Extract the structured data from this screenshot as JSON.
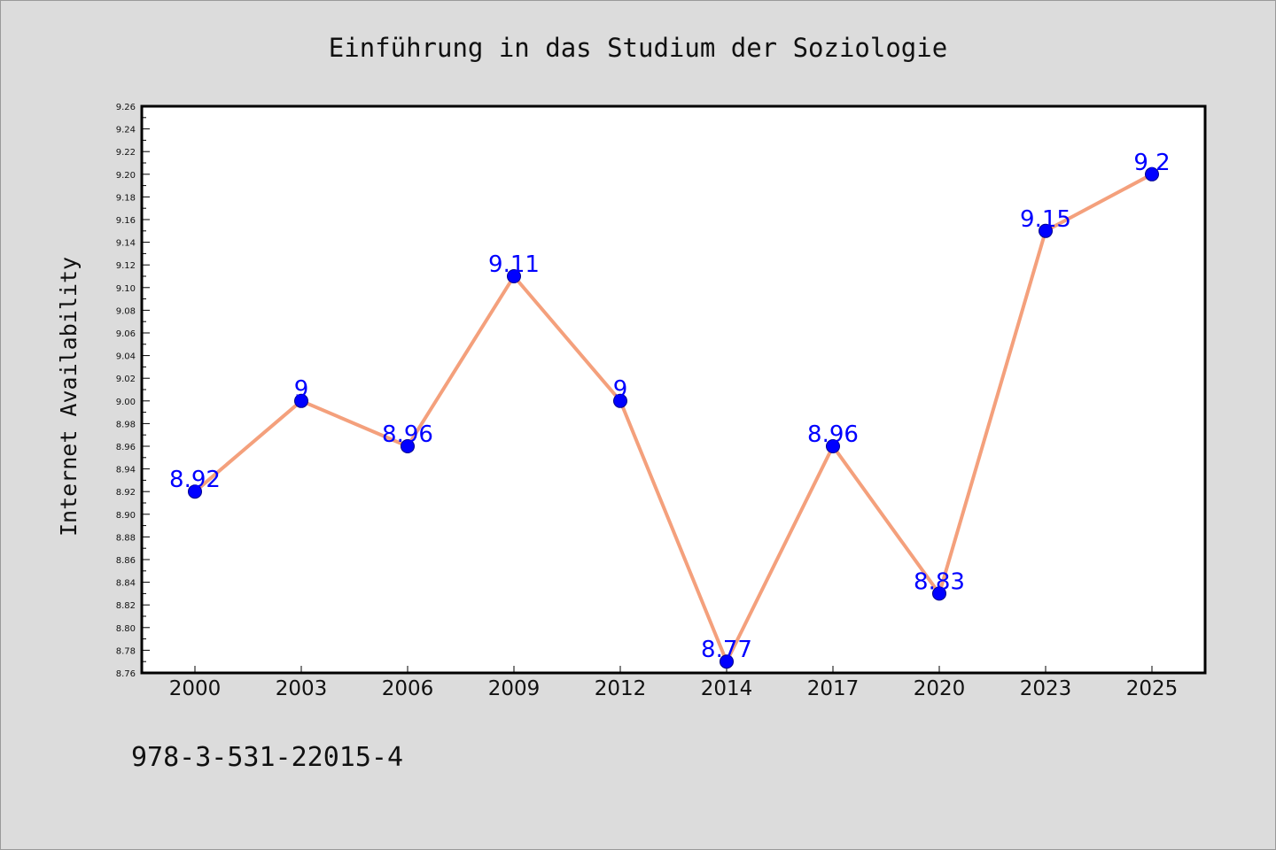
{
  "colors": {
    "background": "#dcdcdc",
    "plot_background": "#ffffff",
    "line": "#f4a07c",
    "marker": "#0000ff",
    "data_label": "#0000ff",
    "text": "#111111"
  },
  "footer": {
    "isbn": "978-3-531-22015-4"
  },
  "chart_data": {
    "type": "line",
    "title": "Einführung in das Studium der Soziologie",
    "xlabel": "",
    "ylabel": "Internet Availability",
    "categories": [
      "2000",
      "2003",
      "2006",
      "2009",
      "2012",
      "2014",
      "2017",
      "2020",
      "2023",
      "2025"
    ],
    "series": [
      {
        "values": [
          8.92,
          9,
          8.96,
          9.11,
          9,
          8.77,
          8.96,
          8.83,
          9.15,
          9.2
        ],
        "data_labels": [
          "8.92",
          "9",
          "8.96",
          "9.11",
          "9",
          "8.77",
          "8.96",
          "8.83",
          "9.15",
          "9.2"
        ],
        "line_color": "#f4a07c",
        "marker_color": "#0000ff"
      }
    ],
    "ylim": [
      8.76,
      9.26
    ],
    "yticks": [
      "8.76",
      "8.78",
      "8.80",
      "8.82",
      "8.84",
      "8.86",
      "8.88",
      "8.90",
      "8.92",
      "8.94",
      "8.96",
      "8.98",
      "9.00",
      "9.02",
      "9.04",
      "9.06",
      "9.08",
      "9.10",
      "9.12",
      "9.14",
      "9.16",
      "9.18",
      "9.20",
      "9.22",
      "9.24",
      "9.26"
    ],
    "grid": false,
    "legend": "none"
  }
}
